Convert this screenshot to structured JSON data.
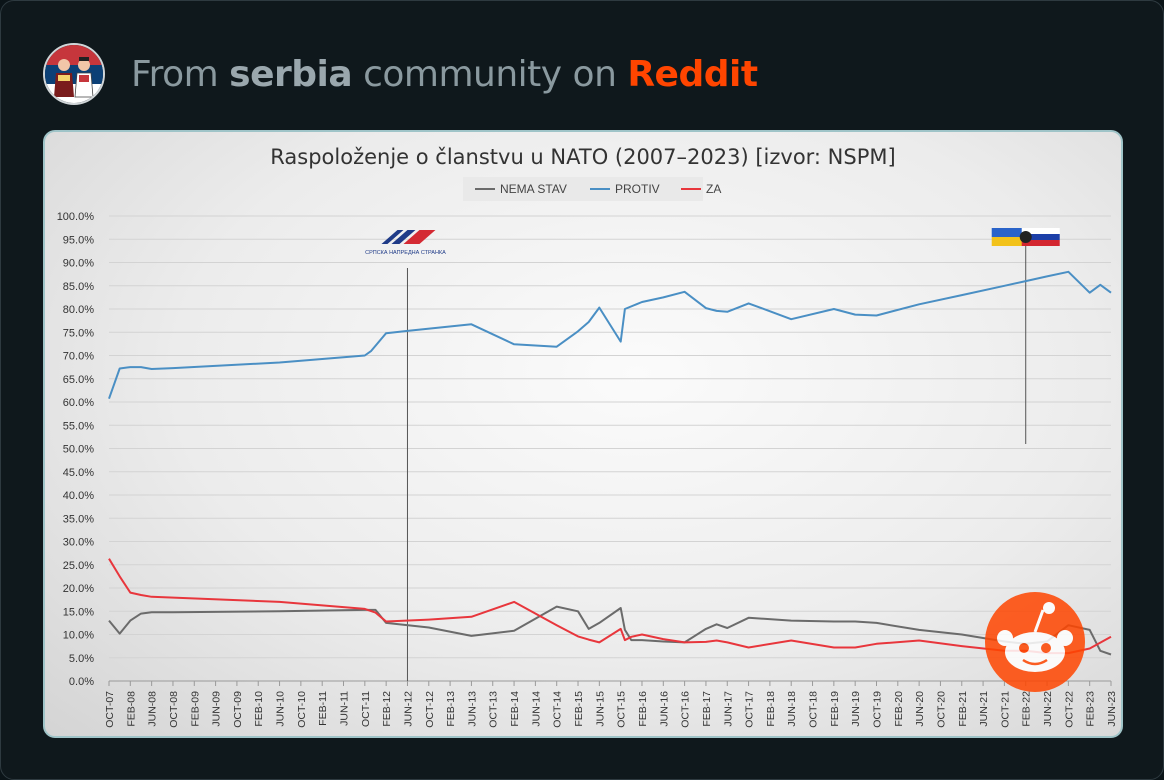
{
  "header": {
    "prefix": "From ",
    "community": "serbia",
    "middle": " community on ",
    "brand": "Reddit",
    "avatar_icon": "serbian-folk-couple-avatar"
  },
  "colors": {
    "nema_stav": "#6b6b6b",
    "protiv": "#4a8fc4",
    "za": "#e8363c",
    "reddit": "#ff4500"
  },
  "chart_data": {
    "type": "line",
    "title": "Raspoloženje o članstvu u NATO (2007–2023) [izvor: NSPM]",
    "y_ticks": [
      "0.0%",
      "5.0%",
      "10.0%",
      "15.0%",
      "20.0%",
      "25.0%",
      "30.0%",
      "35.0%",
      "40.0%",
      "45.0%",
      "50.0%",
      "55.0%",
      "60.0%",
      "65.0%",
      "70.0%",
      "75.0%",
      "80.0%",
      "85.0%",
      "90.0%",
      "95.0%",
      "100.0%"
    ],
    "ylim": [
      0,
      100
    ],
    "x_ticks": [
      "OCT-07",
      "FEB-08",
      "JUN-08",
      "OCT-08",
      "FEB-09",
      "JUN-09",
      "OCT-09",
      "FEB-10",
      "JUN-10",
      "OCT-10",
      "FEB-11",
      "JUN-11",
      "OCT-11",
      "FEB-12",
      "JUN-12",
      "OCT-12",
      "FEB-13",
      "JUN-13",
      "OCT-13",
      "FEB-14",
      "JUN-14",
      "OCT-14",
      "FEB-15",
      "JUN-15",
      "OCT-15",
      "FEB-16",
      "JUN-16",
      "OCT-16",
      "FEB-17",
      "JUN-17",
      "OCT-17",
      "FEB-18",
      "JUN-18",
      "OCT-18",
      "FEB-19",
      "JUN-19",
      "OCT-19",
      "FEB-20",
      "JUN-20",
      "OCT-20",
      "FEB-21",
      "JUN-21",
      "OCT-21",
      "FEB-22",
      "JUN-22",
      "OCT-22",
      "FEB-23",
      "JUN-23"
    ],
    "xlim": [
      0,
      47
    ],
    "grid": true,
    "legend_position": "top-center",
    "annotations": [
      {
        "x": 14.0,
        "label": "СРПСКА НАПРЕДНА СТРАНКА",
        "icon": "sns-party-logo"
      },
      {
        "x": 43.0,
        "label": "",
        "icon": "ukraine-russia-flags"
      }
    ],
    "series": [
      {
        "name": "NEMA STAV",
        "color": "#6b6b6b",
        "x": [
          0,
          0.5,
          1,
          1.5,
          2,
          3,
          8,
          12,
          12.5,
          13,
          15,
          17,
          19,
          21,
          22,
          22.5,
          23,
          24,
          24.2,
          24.5,
          25,
          26,
          27,
          28,
          28.5,
          29,
          30,
          32,
          34,
          35,
          36,
          38,
          40,
          42,
          43,
          44,
          45,
          46,
          46.5,
          47
        ],
        "y": [
          13,
          10.2,
          13,
          14.5,
          14.8,
          14.8,
          15,
          15.3,
          15.3,
          12.5,
          11.5,
          9.7,
          10.8,
          16,
          15,
          11.2,
          12.5,
          15.7,
          11,
          8.8,
          8.8,
          8.5,
          8.3,
          11.2,
          12.2,
          11.4,
          13.6,
          13,
          12.8,
          12.8,
          12.5,
          11,
          10,
          8.5,
          8,
          8.5,
          12,
          11,
          6.5,
          5.7
        ]
      },
      {
        "name": "PROTIV",
        "color": "#4a8fc4",
        "x": [
          0,
          0.5,
          1,
          1.5,
          2,
          3,
          8,
          12,
          12.3,
          13,
          14,
          17,
          19,
          21,
          22,
          22.5,
          23,
          24,
          24.2,
          25,
          26,
          27,
          28,
          28.5,
          29,
          30,
          32,
          34,
          35,
          36,
          38,
          40,
          42,
          43,
          44,
          45,
          46,
          46.5,
          47
        ],
        "y": [
          60.7,
          67.2,
          67.5,
          67.5,
          67.1,
          67.3,
          68.5,
          70,
          71,
          74.8,
          75.3,
          76.7,
          72.4,
          71.9,
          75.2,
          77.2,
          80.3,
          73,
          80,
          81.5,
          82.5,
          83.7,
          80.2,
          79.6,
          79.4,
          81.2,
          77.8,
          80,
          78.8,
          78.6,
          81,
          83,
          85,
          86,
          87,
          88,
          83.5,
          85.2,
          83.5
        ]
      },
      {
        "name": "ZA",
        "color": "#e8363c",
        "x": [
          0,
          0.5,
          1,
          1.5,
          2,
          8,
          12,
          12.5,
          13,
          15,
          17,
          19,
          21,
          22,
          22.5,
          23,
          24,
          24.2,
          24.5,
          25,
          26,
          27,
          28,
          28.5,
          29,
          30,
          32,
          34,
          35,
          36,
          38,
          40,
          42,
          43,
          44,
          45,
          46,
          47
        ],
        "y": [
          26.3,
          22.5,
          19,
          18.5,
          18.1,
          17,
          15.5,
          14.7,
          12.8,
          13.2,
          13.8,
          17,
          12,
          9.6,
          8.9,
          8.3,
          11.2,
          8.8,
          9.5,
          10,
          9,
          8.3,
          8.4,
          8.7,
          8.3,
          7.2,
          8.7,
          7.2,
          7.2,
          8,
          8.7,
          7.5,
          6.5,
          6.5,
          6,
          6,
          7,
          9.5
        ]
      }
    ]
  }
}
